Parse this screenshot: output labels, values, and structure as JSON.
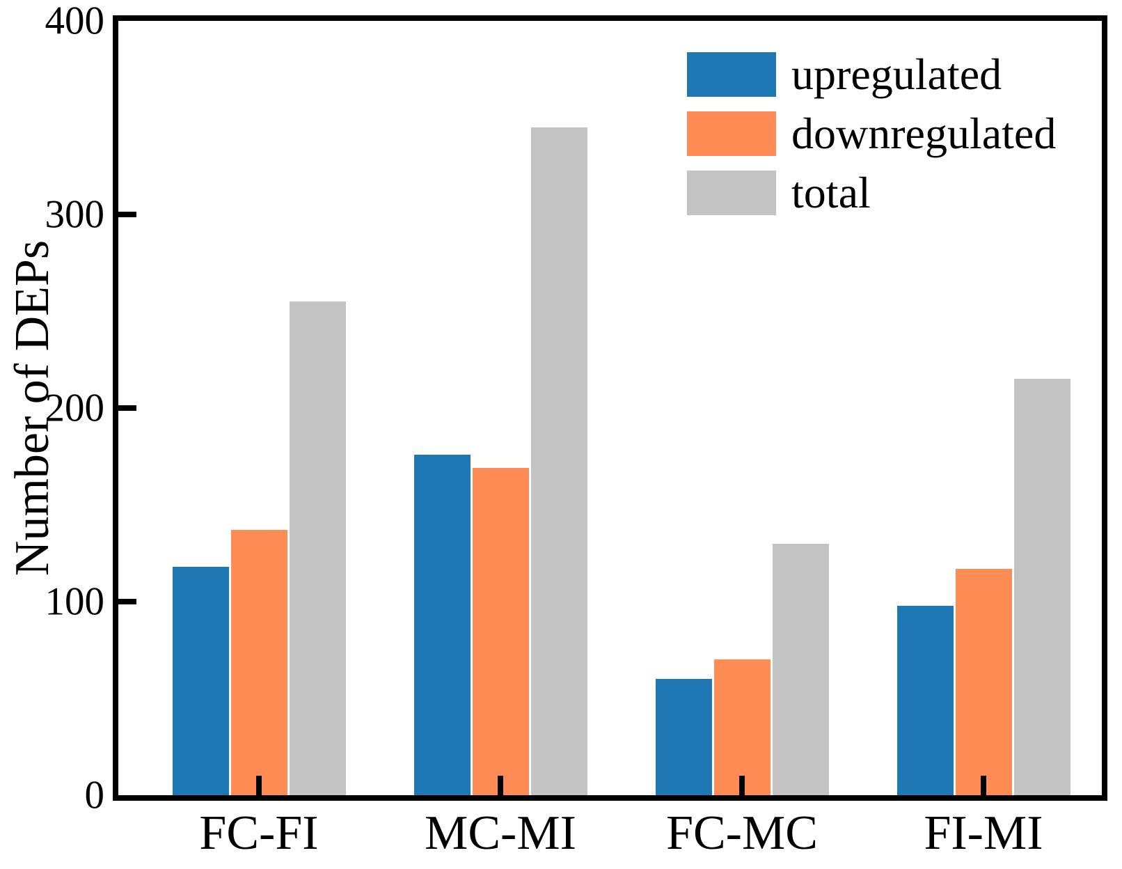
{
  "chart_data": {
    "type": "bar",
    "title": "",
    "categories": [
      "FC-FI",
      "MC-MI",
      "FC-MC",
      "FI-MI"
    ],
    "series": [
      {
        "name": "upregulated",
        "color": "#1F77B4",
        "values": [
          118,
          176,
          60,
          98
        ]
      },
      {
        "name": "downregulated",
        "color": "#FF8C55",
        "values": [
          137,
          169,
          70,
          117
        ]
      },
      {
        "name": "total",
        "color": "#C3C3C3",
        "values": [
          255,
          345,
          130,
          215
        ]
      }
    ],
    "xlabel": "",
    "ylabel": "Number of DEPs",
    "ylim": [
      0,
      400
    ],
    "yticks": [
      0,
      100,
      200,
      300,
      400
    ],
    "ytick_labels": [
      "0",
      "100",
      "200",
      "300",
      "400"
    ],
    "grid": false,
    "legend_position": "top-right",
    "axis_color": "#000000",
    "background_color": "#FFFFFF"
  }
}
